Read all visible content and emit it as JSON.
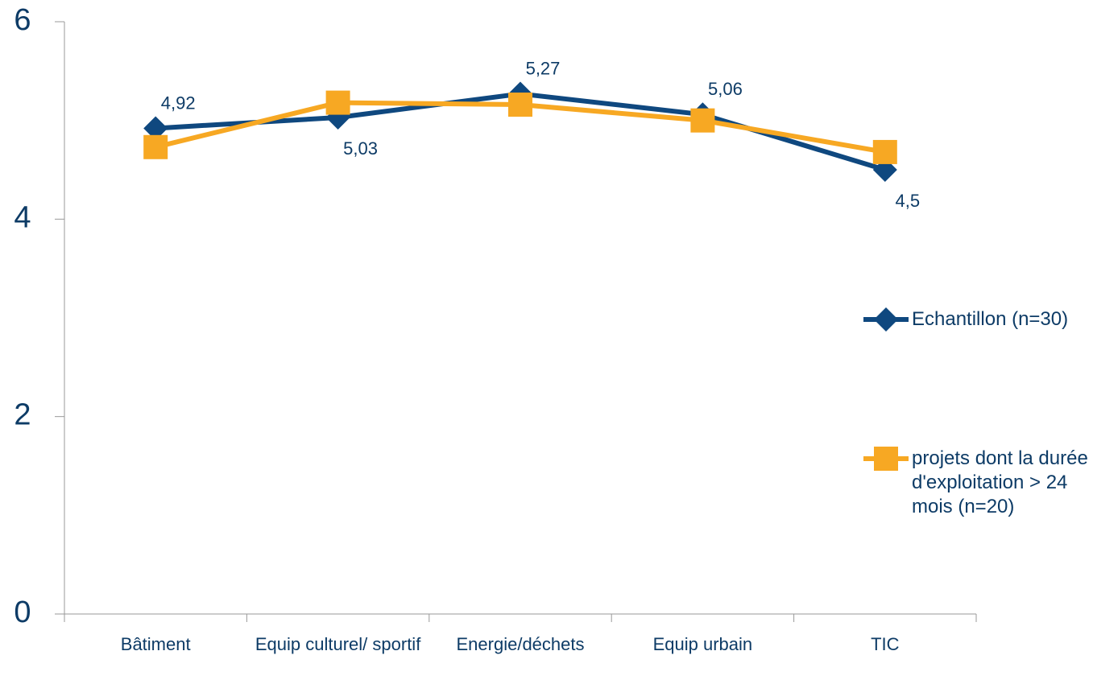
{
  "chart_data": {
    "type": "line",
    "categories": [
      "Bâtiment",
      "Equip culturel/ sportif",
      "Energie/déchets",
      "Equip urbain",
      "TIC"
    ],
    "series": [
      {
        "name": "Echantillon (n=30)",
        "color": "#0f487f",
        "marker": "diamond",
        "values": [
          4.92,
          5.03,
          5.27,
          5.06,
          4.5
        ],
        "value_labels": [
          "4,92",
          "5,03",
          "5,27",
          "5,06",
          "4,5"
        ]
      },
      {
        "name": "projets dont la durée d'exploitation > 24 mois (n=20)",
        "color": "#f7a823",
        "marker": "square",
        "values": [
          4.73,
          5.18,
          5.16,
          5.0,
          4.68
        ]
      }
    ],
    "ylim": [
      0,
      6
    ],
    "yticks": [
      0,
      2,
      4,
      6
    ],
    "legend": "right"
  }
}
